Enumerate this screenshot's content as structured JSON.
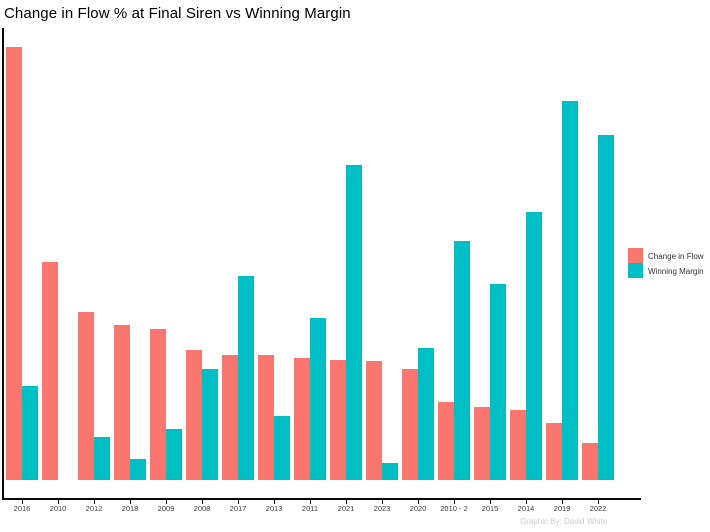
{
  "title": "Change in Flow % at Final Siren vs Winning Margin",
  "watermark": "Graphic By: David White",
  "colors": {
    "change_in_flow": "#F8766D",
    "winning_margin": "#00BFC4",
    "axis": "#0a0a0a",
    "axis_text": "#3d3d3d",
    "watermark_text": "#cccccc"
  },
  "legend": {
    "items": [
      {
        "label": "Change in Flow",
        "color": "#F8766D"
      },
      {
        "label": "Winning Margin",
        "color": "#00BFC4"
      }
    ]
  },
  "chart_data": {
    "type": "bar",
    "title": "Change in Flow % at Final Siren vs Winning Margin",
    "categories": [
      "2016",
      "2010",
      "2012",
      "2018",
      "2009",
      "2008",
      "2017",
      "2013",
      "2011",
      "2021",
      "2023",
      "2020",
      "2010 - 2",
      "2015",
      "2014",
      "2019",
      "2022"
    ],
    "series": [
      {
        "name": "Change in Flow",
        "color": "#F8766D",
        "values": [
          101.7,
          51.2,
          39.5,
          36.4,
          35.4,
          30.5,
          29.3,
          29.4,
          28.6,
          28.2,
          28.0,
          26.1,
          18.2,
          17.1,
          16.5,
          13.4,
          8.8
        ]
      },
      {
        "name": "Winning Margin",
        "color": "#00BFC4",
        "values": [
          22,
          0,
          10,
          5,
          12,
          26,
          48,
          15,
          38,
          74,
          4,
          31,
          56,
          46,
          63,
          89,
          81
        ]
      }
    ],
    "xlabel": "",
    "ylabel": "",
    "ylim": [
      0,
      106
    ],
    "y_axis_labels": "none",
    "grid": false,
    "legend_position": "right",
    "notes": "Bars float above x-axis line (axis expansion gap); 2010 Winning Margin is 0 so no teal bar is drawn"
  }
}
